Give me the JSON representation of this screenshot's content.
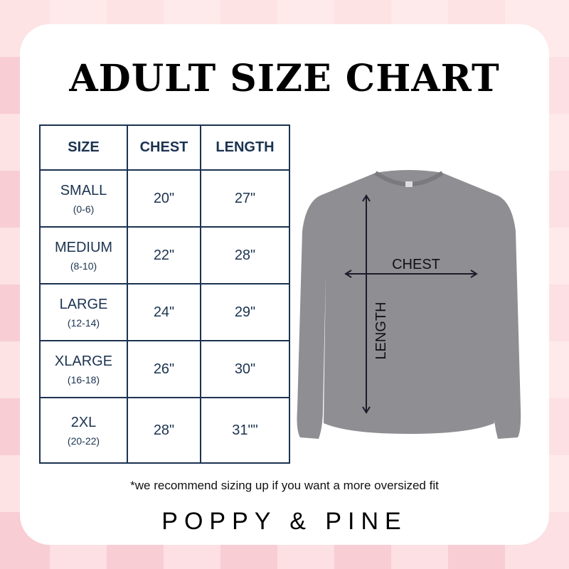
{
  "title": "ADULT SIZE CHART",
  "table": {
    "headers": [
      "SIZE",
      "CHEST",
      "LENGTH"
    ],
    "rows": [
      {
        "size": "SMALL",
        "range": "(0-6)",
        "chest": "20\"",
        "length": "27\""
      },
      {
        "size": "MEDIUM",
        "range": "(8-10)",
        "chest": "22\"",
        "length": "28\""
      },
      {
        "size": "LARGE",
        "range": "(12-14)",
        "chest": "24\"",
        "length": "29\""
      },
      {
        "size": "XLARGE",
        "range": "(16-18)",
        "chest": "26\"",
        "length": "30\""
      },
      {
        "size": "2XL",
        "range": "(20-22)",
        "chest": "28\"",
        "length": "31\"\""
      }
    ]
  },
  "diagram": {
    "chest_label": "CHEST",
    "length_label": "LENGTH",
    "shirt_color": "#8e8e93"
  },
  "note": "*we recommend sizing up if you want a more oversized fit",
  "brand": "POPPY & PINE",
  "colors": {
    "table": "#1b3350",
    "background": "#f8cdd4"
  }
}
